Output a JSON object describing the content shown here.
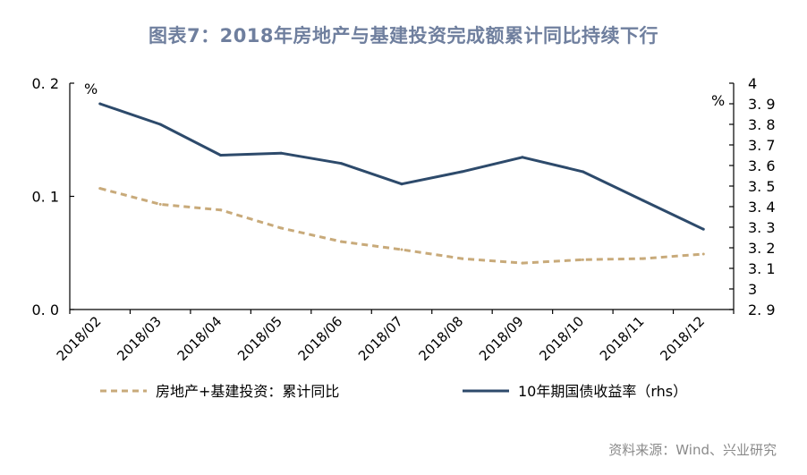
{
  "page": {
    "title": "图表7：2018年房地产与基建投资完成额累计同比持续下行",
    "source": "资料来源：Wind、兴业研究"
  },
  "chart_data": {
    "type": "line",
    "categories": [
      "2018/02",
      "2018/03",
      "2018/04",
      "2018/05",
      "2018/06",
      "2018/07",
      "2018/08",
      "2018/09",
      "2018/10",
      "2018/11",
      "2018/12"
    ],
    "left_axis": {
      "unit": "%",
      "ylim": [
        0,
        0.2
      ],
      "ticks": [
        "0. 0",
        "0. 1",
        "0. 2"
      ],
      "tick_values": [
        0,
        0.1,
        0.2
      ]
    },
    "right_axis": {
      "unit": "%",
      "ylim": [
        2.9,
        4
      ],
      "ticks": [
        "2. 9",
        "3",
        "3. 1",
        "3. 2",
        "3. 3",
        "3. 4",
        "3. 5",
        "3. 6",
        "3. 7",
        "3. 8",
        "3. 9",
        "4"
      ],
      "tick_values": [
        2.9,
        3,
        3.1,
        3.2,
        3.3,
        3.4,
        3.5,
        3.6,
        3.7,
        3.8,
        3.9,
        4
      ]
    },
    "series": [
      {
        "name": "房地产+基建投资：累计同比",
        "axis": "left",
        "style": "dashed",
        "color": "#c8aa7a",
        "values": [
          0.107,
          0.093,
          0.088,
          0.072,
          0.06,
          0.053,
          0.045,
          0.041,
          0.044,
          0.045,
          0.049
        ]
      },
      {
        "name": "10年期国债收益率（rhs）",
        "axis": "right",
        "style": "solid",
        "color": "#2d4a6b",
        "values": [
          3.9,
          3.8,
          3.65,
          3.66,
          3.61,
          3.51,
          3.57,
          3.64,
          3.57,
          3.43,
          3.29
        ]
      }
    ],
    "grid": false,
    "legend_position": "bottom"
  }
}
